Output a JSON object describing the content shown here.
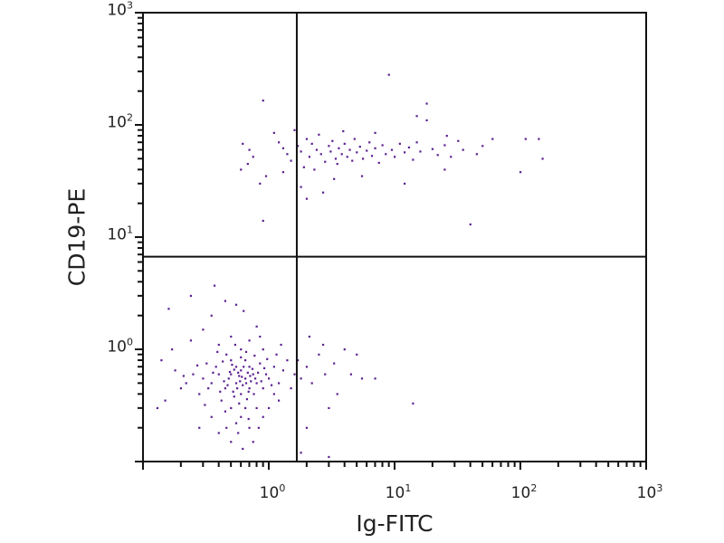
{
  "chart_data": {
    "type": "scatter",
    "xlabel": "Ig-FITC",
    "ylabel": "CD19-PE",
    "xscale": "log",
    "yscale": "log",
    "xlim": [
      0.1,
      1000
    ],
    "ylim": [
      0.1,
      1000
    ],
    "grid": false,
    "point_color": "#5b1f91",
    "quadrant_gates": {
      "x": 1.67,
      "y": 6.7
    },
    "xticks": [
      {
        "value": 1,
        "base": "10",
        "exp": "0"
      },
      {
        "value": 10,
        "base": "10",
        "exp": "1"
      },
      {
        "value": 100,
        "base": "10",
        "exp": "2"
      },
      {
        "value": 1000,
        "base": "10",
        "exp": "3"
      }
    ],
    "yticks": [
      {
        "value": 1,
        "base": "10",
        "exp": "0"
      },
      {
        "value": 10,
        "base": "10",
        "exp": "1"
      },
      {
        "value": 100,
        "base": "10",
        "exp": "2"
      },
      {
        "value": 1000,
        "base": "10",
        "exp": "3"
      }
    ],
    "points": [
      [
        0.9,
        165
      ],
      [
        0.62,
        68
      ],
      [
        0.7,
        60
      ],
      [
        0.75,
        52
      ],
      [
        0.68,
        45
      ],
      [
        0.85,
        30
      ],
      [
        0.95,
        35
      ],
      [
        0.9,
        14
      ],
      [
        1.1,
        85
      ],
      [
        1.2,
        70
      ],
      [
        1.3,
        62
      ],
      [
        1.4,
        55
      ],
      [
        1.5,
        48
      ],
      [
        1.6,
        90
      ],
      [
        1.7,
        65
      ],
      [
        1.8,
        58
      ],
      [
        1.9,
        42
      ],
      [
        2.0,
        75
      ],
      [
        2.1,
        52
      ],
      [
        2.2,
        68
      ],
      [
        2.3,
        40
      ],
      [
        2.4,
        60
      ],
      [
        2.5,
        82
      ],
      [
        2.6,
        55
      ],
      [
        2.8,
        47
      ],
      [
        3.0,
        65
      ],
      [
        3.1,
        58
      ],
      [
        3.2,
        72
      ],
      [
        3.4,
        50
      ],
      [
        3.5,
        45
      ],
      [
        3.6,
        62
      ],
      [
        3.8,
        55
      ],
      [
        4.0,
        68
      ],
      [
        4.2,
        52
      ],
      [
        4.4,
        60
      ],
      [
        4.6,
        48
      ],
      [
        4.8,
        75
      ],
      [
        5.0,
        57
      ],
      [
        5.3,
        64
      ],
      [
        5.6,
        50
      ],
      [
        6.0,
        59
      ],
      [
        6.3,
        70
      ],
      [
        6.6,
        53
      ],
      [
        7.0,
        62
      ],
      [
        7.5,
        46
      ],
      [
        8.0,
        66
      ],
      [
        8.5,
        55
      ],
      [
        9.0,
        280
      ],
      [
        9.5,
        60
      ],
      [
        10,
        52
      ],
      [
        11,
        68
      ],
      [
        12,
        57
      ],
      [
        13,
        63
      ],
      [
        14,
        49
      ],
      [
        15,
        70
      ],
      [
        16,
        58
      ],
      [
        18,
        155
      ],
      [
        20,
        61
      ],
      [
        22,
        54
      ],
      [
        25,
        66
      ],
      [
        28,
        52
      ],
      [
        32,
        72
      ],
      [
        35,
        60
      ],
      [
        40,
        13
      ],
      [
        45,
        55
      ],
      [
        50,
        65
      ],
      [
        60,
        75
      ],
      [
        100,
        38
      ],
      [
        110,
        75
      ],
      [
        140,
        75
      ],
      [
        150,
        50
      ],
      [
        2.7,
        25
      ],
      [
        3.3,
        33
      ],
      [
        5.5,
        35
      ],
      [
        12,
        30
      ],
      [
        18,
        110
      ],
      [
        25,
        40
      ],
      [
        1.3,
        38
      ],
      [
        1.8,
        28
      ],
      [
        2.0,
        22
      ],
      [
        0.6,
        40
      ],
      [
        3.9,
        88
      ],
      [
        7,
        85
      ],
      [
        15,
        120
      ],
      [
        26,
        80
      ],
      [
        0.5,
        0.6
      ],
      [
        0.55,
        0.5
      ],
      [
        0.6,
        0.65
      ],
      [
        0.65,
        0.55
      ],
      [
        0.7,
        0.7
      ],
      [
        0.45,
        0.45
      ],
      [
        0.4,
        0.6
      ],
      [
        0.5,
        0.8
      ],
      [
        0.6,
        0.4
      ],
      [
        0.7,
        0.45
      ],
      [
        0.75,
        0.6
      ],
      [
        0.8,
        0.5
      ],
      [
        0.55,
        0.7
      ],
      [
        0.65,
        0.8
      ],
      [
        0.48,
        0.55
      ],
      [
        0.58,
        0.58
      ],
      [
        0.62,
        0.48
      ],
      [
        0.52,
        0.42
      ],
      [
        0.68,
        0.62
      ],
      [
        0.72,
        0.52
      ],
      [
        0.35,
        0.5
      ],
      [
        0.38,
        0.7
      ],
      [
        0.42,
        0.35
      ],
      [
        0.46,
        0.9
      ],
      [
        0.85,
        0.75
      ],
      [
        0.9,
        0.45
      ],
      [
        0.95,
        0.6
      ],
      [
        1.0,
        0.55
      ],
      [
        1.1,
        0.7
      ],
      [
        1.2,
        0.5
      ],
      [
        1.3,
        0.65
      ],
      [
        1.4,
        0.8
      ],
      [
        0.3,
        0.55
      ],
      [
        0.28,
        0.4
      ],
      [
        0.32,
        0.75
      ],
      [
        0.25,
        0.6
      ],
      [
        0.22,
        0.5
      ],
      [
        0.2,
        0.45
      ],
      [
        0.18,
        0.65
      ],
      [
        0.15,
        0.35
      ],
      [
        0.13,
        0.3
      ],
      [
        0.14,
        0.8
      ],
      [
        0.17,
        1.0
      ],
      [
        0.24,
        1.2
      ],
      [
        0.3,
        1.5
      ],
      [
        0.35,
        2.0
      ],
      [
        0.4,
        1.1
      ],
      [
        0.5,
        1.3
      ],
      [
        0.6,
        1.0
      ],
      [
        0.7,
        1.2
      ],
      [
        0.8,
        1.6
      ],
      [
        0.9,
        1.0
      ],
      [
        0.55,
        2.5
      ],
      [
        0.63,
        2.2
      ],
      [
        0.45,
        2.7
      ],
      [
        0.24,
        3.0
      ],
      [
        0.37,
        3.7
      ],
      [
        0.16,
        2.3
      ],
      [
        0.5,
        0.3
      ],
      [
        0.6,
        0.25
      ],
      [
        0.7,
        0.2
      ],
      [
        0.65,
        0.3
      ],
      [
        0.55,
        0.22
      ],
      [
        0.45,
        0.28
      ],
      [
        0.35,
        0.25
      ],
      [
        0.8,
        0.3
      ],
      [
        0.9,
        0.25
      ],
      [
        0.75,
        0.15
      ],
      [
        0.5,
        0.15
      ],
      [
        0.4,
        0.18
      ],
      [
        0.28,
        0.2
      ],
      [
        0.62,
        0.13
      ],
      [
        1.0,
        0.3
      ],
      [
        1.1,
        0.4
      ],
      [
        1.2,
        0.35
      ],
      [
        1.5,
        0.45
      ],
      [
        1.6,
        0.6
      ],
      [
        1.7,
        0.8
      ],
      [
        1.8,
        0.55
      ],
      [
        2.0,
        0.7
      ],
      [
        2.2,
        0.5
      ],
      [
        2.5,
        0.9
      ],
      [
        2.8,
        0.6
      ],
      [
        3.0,
        0.3
      ],
      [
        3.3,
        0.75
      ],
      [
        3.5,
        0.4
      ],
      [
        4.0,
        1.0
      ],
      [
        4.5,
        0.6
      ],
      [
        5.0,
        0.9
      ],
      [
        5.5,
        0.55
      ],
      [
        7.0,
        0.55
      ],
      [
        14,
        0.33
      ],
      [
        2.0,
        0.2
      ],
      [
        1.8,
        0.12
      ],
      [
        3.0,
        0.11
      ],
      [
        2.1,
        1.3
      ],
      [
        2.7,
        1.1
      ],
      [
        0.57,
        0.62
      ],
      [
        0.61,
        0.57
      ],
      [
        0.53,
        0.66
      ],
      [
        0.66,
        0.5
      ],
      [
        0.59,
        0.52
      ],
      [
        0.49,
        0.63
      ],
      [
        0.63,
        0.7
      ],
      [
        0.71,
        0.58
      ],
      [
        0.56,
        0.45
      ],
      [
        0.44,
        0.52
      ],
      [
        0.51,
        0.73
      ],
      [
        0.69,
        0.42
      ],
      [
        0.74,
        0.67
      ],
      [
        0.6,
        0.85
      ],
      [
        0.53,
        0.38
      ],
      [
        0.47,
        0.48
      ],
      [
        0.78,
        0.55
      ],
      [
        0.82,
        0.62
      ],
      [
        0.87,
        0.52
      ],
      [
        0.41,
        0.42
      ],
      [
        0.36,
        0.62
      ],
      [
        0.33,
        0.45
      ],
      [
        0.43,
        0.78
      ],
      [
        0.58,
        0.33
      ],
      [
        0.67,
        0.36
      ],
      [
        0.76,
        0.4
      ],
      [
        0.92,
        0.68
      ],
      [
        1.05,
        0.48
      ],
      [
        0.97,
        0.82
      ],
      [
        0.27,
        0.72
      ],
      [
        0.21,
        0.58
      ],
      [
        0.31,
        0.32
      ],
      [
        0.39,
        0.95
      ],
      [
        0.54,
        1.1
      ],
      [
        0.66,
        0.95
      ],
      [
        0.77,
        0.88
      ],
      [
        0.85,
        1.3
      ],
      [
        1.15,
        0.9
      ],
      [
        1.25,
        1.1
      ],
      [
        0.46,
        0.2
      ],
      [
        0.57,
        0.18
      ],
      [
        0.69,
        0.24
      ],
      [
        0.83,
        0.2
      ]
    ]
  }
}
